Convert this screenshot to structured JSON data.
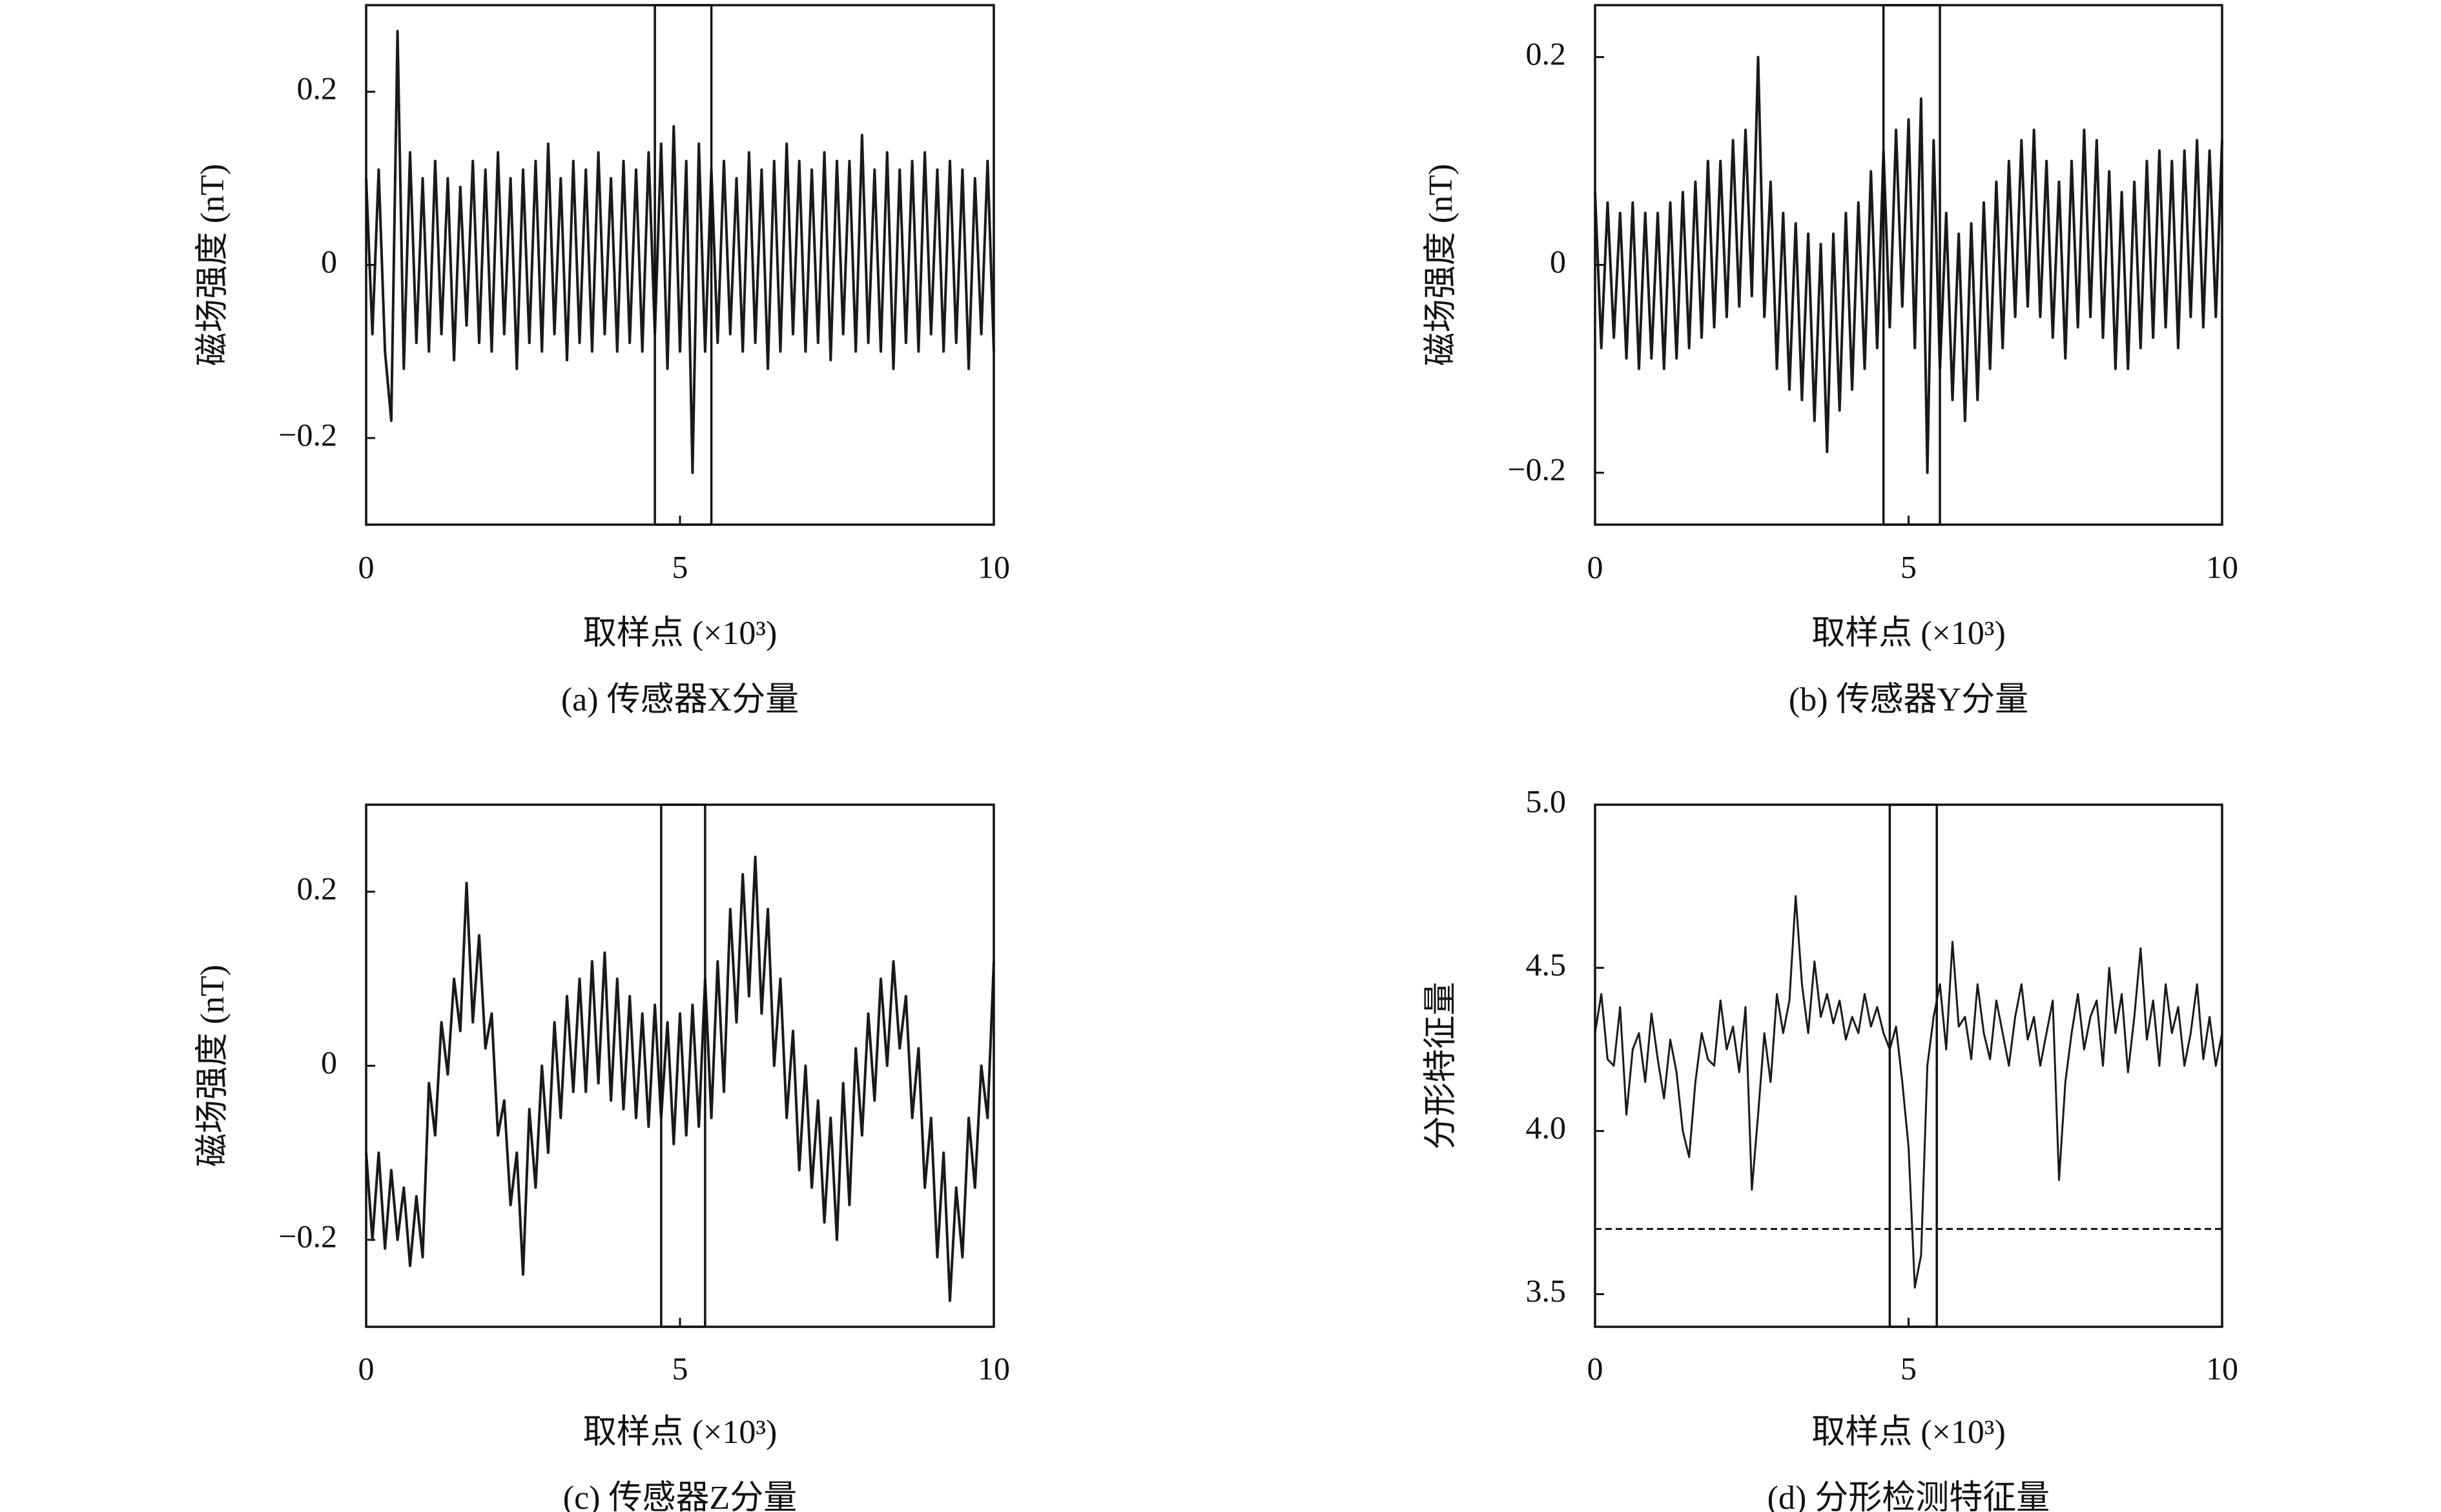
{
  "chart_data": [
    {
      "type": "line",
      "title": "(a) 传感器X分量",
      "xlabel": "取样点 (×10³)",
      "ylabel": "磁场强度 (nT)",
      "color": "#1a1a1a",
      "xlim": [
        0,
        10
      ],
      "xticks": [
        0,
        5,
        10
      ],
      "ylim": [
        -0.3,
        0.3
      ],
      "yticks": [
        {
          "value": -0.2,
          "label": "−0.2"
        },
        0,
        0.2
      ],
      "highlight_x": [
        4.6,
        5.5
      ],
      "x": [
        0,
        0.1,
        0.2,
        0.3,
        0.4,
        0.5,
        0.6,
        0.7,
        0.8,
        0.9,
        1,
        1.1,
        1.2,
        1.3,
        1.4,
        1.5,
        1.6,
        1.7,
        1.8,
        1.9,
        2,
        2.1,
        2.2,
        2.3,
        2.4,
        2.5,
        2.6,
        2.7,
        2.8,
        2.9,
        3,
        3.1,
        3.2,
        3.3,
        3.4,
        3.5,
        3.6,
        3.7,
        3.8,
        3.9,
        4,
        4.1,
        4.2,
        4.3,
        4.4,
        4.5,
        4.6,
        4.7,
        4.8,
        4.9,
        5,
        5.1,
        5.2,
        5.3,
        5.4,
        5.5,
        5.6,
        5.7,
        5.8,
        5.9,
        6,
        6.1,
        6.2,
        6.3,
        6.4,
        6.5,
        6.6,
        6.7,
        6.8,
        6.9,
        7,
        7.1,
        7.2,
        7.3,
        7.4,
        7.5,
        7.6,
        7.7,
        7.8,
        7.9,
        8,
        8.1,
        8.2,
        8.3,
        8.4,
        8.5,
        8.6,
        8.7,
        8.8,
        8.9,
        9,
        9.1,
        9.2,
        9.3,
        9.4,
        9.5,
        9.6,
        9.7,
        9.8,
        9.9,
        10
      ],
      "values": [
        0.1,
        -0.08,
        0.11,
        -0.1,
        -0.18,
        0.27,
        -0.12,
        0.13,
        -0.09,
        0.1,
        -0.1,
        0.12,
        -0.08,
        0.1,
        -0.11,
        0.09,
        -0.07,
        0.12,
        -0.09,
        0.11,
        -0.1,
        0.13,
        -0.08,
        0.1,
        -0.12,
        0.11,
        -0.09,
        0.12,
        -0.1,
        0.14,
        -0.08,
        0.1,
        -0.11,
        0.12,
        -0.09,
        0.11,
        -0.1,
        0.13,
        -0.08,
        0.1,
        -0.1,
        0.12,
        -0.09,
        0.11,
        -0.1,
        0.13,
        -0.08,
        0.14,
        -0.12,
        0.16,
        -0.1,
        0.12,
        -0.24,
        0.14,
        -0.1,
        0.11,
        -0.09,
        0.12,
        -0.08,
        0.1,
        -0.1,
        0.13,
        -0.09,
        0.11,
        -0.12,
        0.12,
        -0.1,
        0.14,
        -0.08,
        0.12,
        -0.1,
        0.11,
        -0.09,
        0.13,
        -0.11,
        0.12,
        -0.08,
        0.12,
        -0.1,
        0.15,
        -0.09,
        0.11,
        -0.1,
        0.13,
        -0.12,
        0.11,
        -0.09,
        0.12,
        -0.1,
        0.13,
        -0.08,
        0.11,
        -0.1,
        0.12,
        -0.09,
        0.11,
        -0.12,
        0.1,
        -0.08,
        0.12,
        -0.1
      ]
    },
    {
      "type": "line",
      "title": "(b) 传感器Y分量",
      "xlabel": "取样点 (×10³)",
      "ylabel": "磁场强度 (nT)",
      "color": "#1a1a1a",
      "xlim": [
        0,
        10
      ],
      "xticks": [
        0,
        5,
        10
      ],
      "ylim": [
        -0.25,
        0.25
      ],
      "yticks": [
        {
          "value": -0.2,
          "label": "−0.2"
        },
        0,
        0.2
      ],
      "highlight_x": [
        4.6,
        5.5
      ],
      "x": [
        0,
        0.1,
        0.2,
        0.3,
        0.4,
        0.5,
        0.6,
        0.7,
        0.8,
        0.9,
        1,
        1.1,
        1.2,
        1.3,
        1.4,
        1.5,
        1.6,
        1.7,
        1.8,
        1.9,
        2,
        2.1,
        2.2,
        2.3,
        2.4,
        2.5,
        2.6,
        2.7,
        2.8,
        2.9,
        3,
        3.1,
        3.2,
        3.3,
        3.4,
        3.5,
        3.6,
        3.7,
        3.8,
        3.9,
        4,
        4.1,
        4.2,
        4.3,
        4.4,
        4.5,
        4.6,
        4.7,
        4.8,
        4.9,
        5,
        5.1,
        5.2,
        5.3,
        5.4,
        5.5,
        5.6,
        5.7,
        5.8,
        5.9,
        6,
        6.1,
        6.2,
        6.3,
        6.4,
        6.5,
        6.6,
        6.7,
        6.8,
        6.9,
        7,
        7.1,
        7.2,
        7.3,
        7.4,
        7.5,
        7.6,
        7.7,
        7.8,
        7.9,
        8,
        8.1,
        8.2,
        8.3,
        8.4,
        8.5,
        8.6,
        8.7,
        8.8,
        8.9,
        9,
        9.1,
        9.2,
        9.3,
        9.4,
        9.5,
        9.6,
        9.7,
        9.8,
        9.9,
        10
      ],
      "values": [
        0.07,
        -0.08,
        0.06,
        -0.07,
        0.05,
        -0.09,
        0.06,
        -0.1,
        0.05,
        -0.09,
        0.05,
        -0.1,
        0.06,
        -0.09,
        0.07,
        -0.08,
        0.08,
        -0.07,
        0.1,
        -0.06,
        0.1,
        -0.05,
        0.12,
        -0.04,
        0.13,
        -0.03,
        0.2,
        -0.05,
        0.08,
        -0.1,
        0.05,
        -0.12,
        0.04,
        -0.13,
        0.03,
        -0.15,
        0.02,
        -0.18,
        0.03,
        -0.14,
        0.05,
        -0.12,
        0.06,
        -0.1,
        0.09,
        -0.08,
        0.11,
        -0.06,
        0.13,
        -0.04,
        0.14,
        -0.08,
        0.16,
        -0.2,
        0.12,
        -0.1,
        0.05,
        -0.13,
        0.03,
        -0.15,
        0.04,
        -0.13,
        0.06,
        -0.1,
        0.08,
        -0.08,
        0.1,
        -0.05,
        0.12,
        -0.04,
        0.13,
        -0.05,
        0.1,
        -0.07,
        0.08,
        -0.09,
        0.1,
        -0.06,
        0.13,
        -0.05,
        0.12,
        -0.07,
        0.09,
        -0.1,
        0.07,
        -0.1,
        0.08,
        -0.08,
        0.1,
        -0.07,
        0.11,
        -0.06,
        0.1,
        -0.08,
        0.11,
        -0.05,
        0.12,
        -0.06,
        0.11,
        -0.05,
        0.12
      ]
    },
    {
      "type": "line",
      "title": "(c) 传感器Z分量",
      "xlabel": "取样点 (×10³)",
      "ylabel": "磁场强度 (nT)",
      "color": "#1a1a1a",
      "xlim": [
        0,
        10
      ],
      "xticks": [
        0,
        5,
        10
      ],
      "ylim": [
        -0.3,
        0.3
      ],
      "yticks": [
        {
          "value": -0.2,
          "label": "−0.2"
        },
        0,
        0.2
      ],
      "highlight_x": [
        4.7,
        5.4
      ],
      "x": [
        0,
        0.1,
        0.2,
        0.3,
        0.4,
        0.5,
        0.6,
        0.7,
        0.8,
        0.9,
        1,
        1.1,
        1.2,
        1.3,
        1.4,
        1.5,
        1.6,
        1.7,
        1.8,
        1.9,
        2,
        2.1,
        2.2,
        2.3,
        2.4,
        2.5,
        2.6,
        2.7,
        2.8,
        2.9,
        3,
        3.1,
        3.2,
        3.3,
        3.4,
        3.5,
        3.6,
        3.7,
        3.8,
        3.9,
        4,
        4.1,
        4.2,
        4.3,
        4.4,
        4.5,
        4.6,
        4.7,
        4.8,
        4.9,
        5,
        5.1,
        5.2,
        5.3,
        5.4,
        5.5,
        5.6,
        5.7,
        5.8,
        5.9,
        6,
        6.1,
        6.2,
        6.3,
        6.4,
        6.5,
        6.6,
        6.7,
        6.8,
        6.9,
        7,
        7.1,
        7.2,
        7.3,
        7.4,
        7.5,
        7.6,
        7.7,
        7.8,
        7.9,
        8,
        8.1,
        8.2,
        8.3,
        8.4,
        8.5,
        8.6,
        8.7,
        8.8,
        8.9,
        9,
        9.1,
        9.2,
        9.3,
        9.4,
        9.5,
        9.6,
        9.7,
        9.8,
        9.9,
        10
      ],
      "values": [
        -0.1,
        -0.2,
        -0.1,
        -0.21,
        -0.12,
        -0.2,
        -0.14,
        -0.23,
        -0.15,
        -0.22,
        -0.02,
        -0.08,
        0.05,
        -0.01,
        0.1,
        0.04,
        0.21,
        0.05,
        0.15,
        0.02,
        0.06,
        -0.08,
        -0.04,
        -0.16,
        -0.1,
        -0.24,
        -0.05,
        -0.14,
        0.0,
        -0.1,
        0.05,
        -0.06,
        0.08,
        -0.03,
        0.1,
        -0.03,
        0.12,
        -0.02,
        0.13,
        -0.04,
        0.1,
        -0.05,
        0.08,
        -0.06,
        0.06,
        -0.07,
        0.07,
        -0.06,
        0.05,
        -0.09,
        0.06,
        -0.08,
        0.07,
        -0.07,
        0.1,
        -0.06,
        0.12,
        -0.03,
        0.18,
        0.05,
        0.22,
        0.08,
        0.24,
        0.06,
        0.18,
        0.0,
        0.1,
        -0.06,
        0.04,
        -0.12,
        0.0,
        -0.14,
        -0.04,
        -0.18,
        -0.06,
        -0.2,
        -0.02,
        -0.16,
        0.02,
        -0.08,
        0.06,
        -0.04,
        0.1,
        0.0,
        0.12,
        0.02,
        0.08,
        -0.06,
        0.02,
        -0.14,
        -0.06,
        -0.22,
        -0.1,
        -0.27,
        -0.14,
        -0.22,
        -0.06,
        -0.14,
        0.0,
        -0.06,
        0.12
      ]
    },
    {
      "type": "line",
      "title": "(d) 分形检测特征量",
      "xlabel": "取样点 (×10³)",
      "ylabel": "分形特征量",
      "color": "#1a1a1a",
      "xlim": [
        0,
        10
      ],
      "xticks": [
        0,
        5,
        10
      ],
      "ylim": [
        3.4,
        5.0
      ],
      "yticks": [
        3.5,
        {
          "value": 4,
          "label": "4.0"
        },
        4.5,
        {
          "value": 5,
          "label": "5.0"
        }
      ],
      "highlight_x": [
        4.7,
        5.45
      ],
      "threshold": 3.7,
      "x": [
        0,
        0.1,
        0.2,
        0.3,
        0.4,
        0.5,
        0.6,
        0.7,
        0.8,
        0.9,
        1,
        1.1,
        1.2,
        1.3,
        1.4,
        1.5,
        1.6,
        1.7,
        1.8,
        1.9,
        2,
        2.1,
        2.2,
        2.3,
        2.4,
        2.5,
        2.6,
        2.7,
        2.8,
        2.9,
        3,
        3.1,
        3.2,
        3.3,
        3.4,
        3.5,
        3.6,
        3.7,
        3.8,
        3.9,
        4,
        4.1,
        4.2,
        4.3,
        4.4,
        4.5,
        4.6,
        4.7,
        4.8,
        4.9,
        5,
        5.1,
        5.2,
        5.3,
        5.4,
        5.5,
        5.6,
        5.7,
        5.8,
        5.9,
        6,
        6.1,
        6.2,
        6.3,
        6.4,
        6.5,
        6.6,
        6.7,
        6.8,
        6.9,
        7,
        7.1,
        7.2,
        7.3,
        7.4,
        7.5,
        7.6,
        7.7,
        7.8,
        7.9,
        8,
        8.1,
        8.2,
        8.3,
        8.4,
        8.5,
        8.6,
        8.7,
        8.8,
        8.9,
        9,
        9.1,
        9.2,
        9.3,
        9.4,
        9.5,
        9.6,
        9.7,
        9.8,
        9.9,
        10
      ],
      "values": [
        4.3,
        4.42,
        4.22,
        4.2,
        4.38,
        4.05,
        4.25,
        4.3,
        4.15,
        4.36,
        4.22,
        4.1,
        4.28,
        4.18,
        4.0,
        3.92,
        4.15,
        4.3,
        4.22,
        4.2,
        4.4,
        4.25,
        4.32,
        4.18,
        4.38,
        3.82,
        4.05,
        4.3,
        4.15,
        4.42,
        4.3,
        4.4,
        4.72,
        4.45,
        4.3,
        4.52,
        4.35,
        4.42,
        4.33,
        4.4,
        4.28,
        4.35,
        4.3,
        4.42,
        4.32,
        4.38,
        4.3,
        4.25,
        4.32,
        4.15,
        3.95,
        3.52,
        3.62,
        4.2,
        4.35,
        4.45,
        4.25,
        4.58,
        4.32,
        4.35,
        4.22,
        4.45,
        4.3,
        4.22,
        4.4,
        4.3,
        4.2,
        4.35,
        4.45,
        4.28,
        4.35,
        4.2,
        4.3,
        4.4,
        3.85,
        4.15,
        4.3,
        4.42,
        4.25,
        4.35,
        4.4,
        4.2,
        4.5,
        4.3,
        4.42,
        4.18,
        4.35,
        4.56,
        4.28,
        4.4,
        4.2,
        4.45,
        4.3,
        4.38,
        4.2,
        4.3,
        4.45,
        4.22,
        4.35,
        4.2,
        4.3
      ]
    }
  ]
}
